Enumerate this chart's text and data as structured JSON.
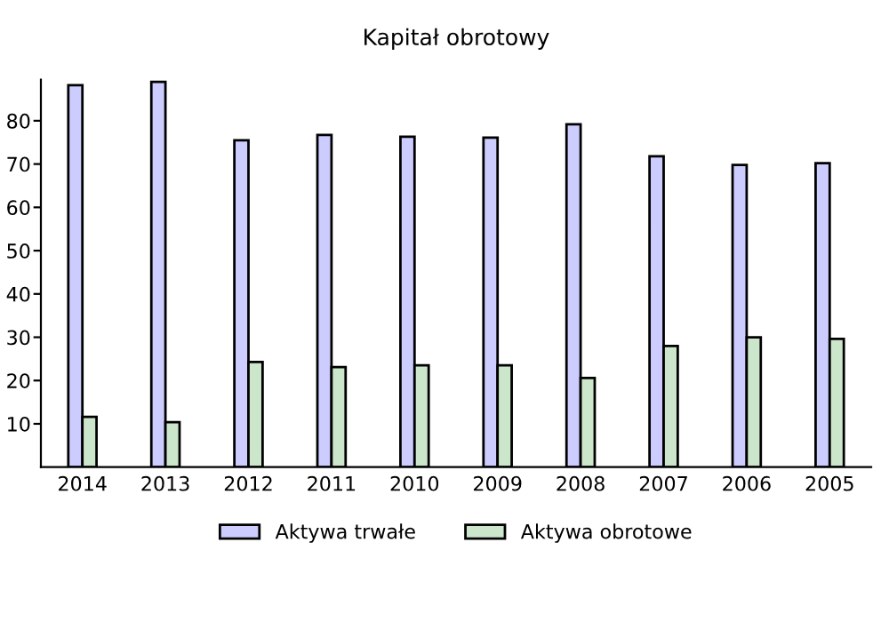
{
  "chart_data": {
    "type": "bar",
    "title": "Kapitał obrotowy",
    "categories": [
      "2014",
      "2013",
      "2012",
      "2011",
      "2010",
      "2009",
      "2008",
      "2007",
      "2006",
      "2005"
    ],
    "series": [
      {
        "name": "Aktywa trwałe",
        "color": "#ccccff",
        "values": [
          88.2,
          89.0,
          75.5,
          76.7,
          76.3,
          76.1,
          79.2,
          71.8,
          69.8,
          70.2
        ]
      },
      {
        "name": "Aktywa obrotowe",
        "color": "#cce6cc",
        "values": [
          11.6,
          10.4,
          24.3,
          23.1,
          23.5,
          23.5,
          20.6,
          28.0,
          30.0,
          29.6
        ]
      }
    ],
    "ylim": [
      0,
      89.5
    ],
    "yticks": [
      10,
      20,
      30,
      40,
      50,
      60,
      70,
      80
    ],
    "grid": false,
    "legend": "bottom"
  }
}
